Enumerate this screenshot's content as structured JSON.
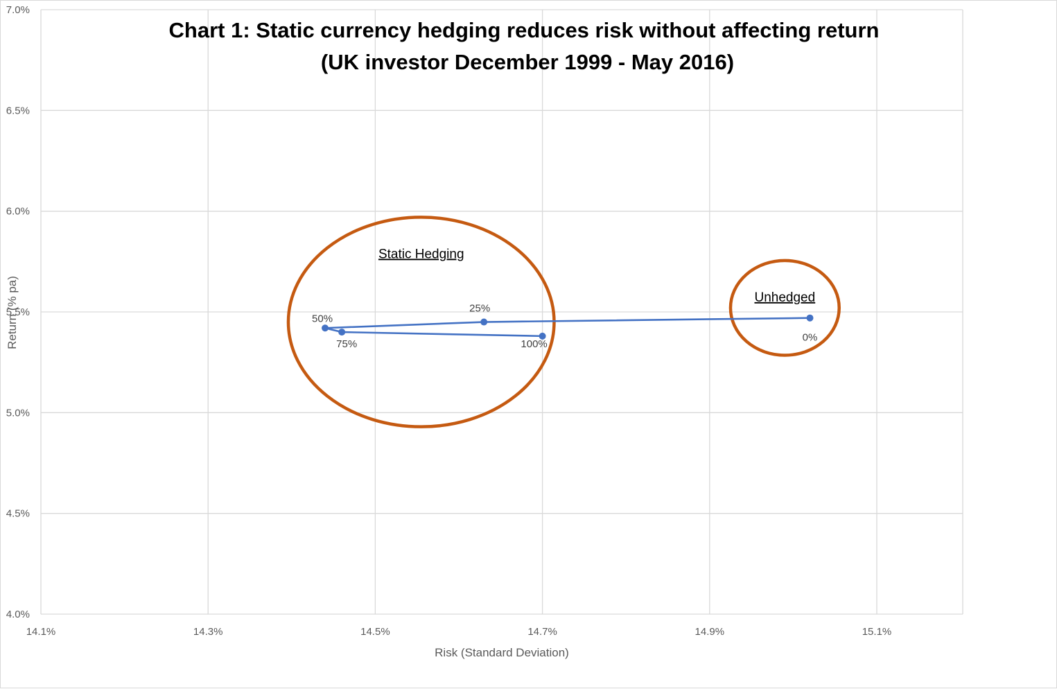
{
  "chart_data": {
    "type": "scatter",
    "title": "Chart 1: Static currency hedging reduces risk without affecting return",
    "subtitle": "(UK investor December 1999 - May 2016)",
    "xlabel": "Risk (Standard Deviation)",
    "ylabel": "Return (% pa)",
    "xlim": [
      14.1,
      15.2
    ],
    "ylim": [
      4.0,
      7.0
    ],
    "x_ticks": [
      14.1,
      14.3,
      14.5,
      14.7,
      14.9,
      15.1
    ],
    "x_tick_labels": [
      "14.1%",
      "14.3%",
      "14.5%",
      "14.7%",
      "14.9%",
      "15.1%"
    ],
    "y_ticks": [
      4.0,
      4.5,
      5.0,
      5.5,
      6.0,
      6.5,
      7.0
    ],
    "y_tick_labels": [
      "4.0%",
      "4.5%",
      "5.0%",
      "5.5%",
      "6.0%",
      "6.5%",
      "7.0%"
    ],
    "grid": true,
    "line_color": "#4472c4",
    "annotation_color": "#c55a11",
    "series": [
      {
        "points": [
          {
            "x": 15.02,
            "y": 5.47,
            "label": "0%"
          },
          {
            "x": 14.63,
            "y": 5.45,
            "label": "25%"
          },
          {
            "x": 14.44,
            "y": 5.42,
            "label": "50%"
          },
          {
            "x": 14.46,
            "y": 5.4,
            "label": "75%"
          },
          {
            "x": 14.7,
            "y": 5.38,
            "label": "100%"
          }
        ]
      }
    ],
    "annotations": [
      {
        "label": "Static Hedging",
        "center_x": 14.555,
        "center_y": 5.45,
        "radius_x": 0.159,
        "radius_y": 0.52
      },
      {
        "label": "Unhedged",
        "center_x": 14.99,
        "center_y": 5.52,
        "radius_x": 0.065,
        "radius_y": 0.235
      }
    ]
  }
}
